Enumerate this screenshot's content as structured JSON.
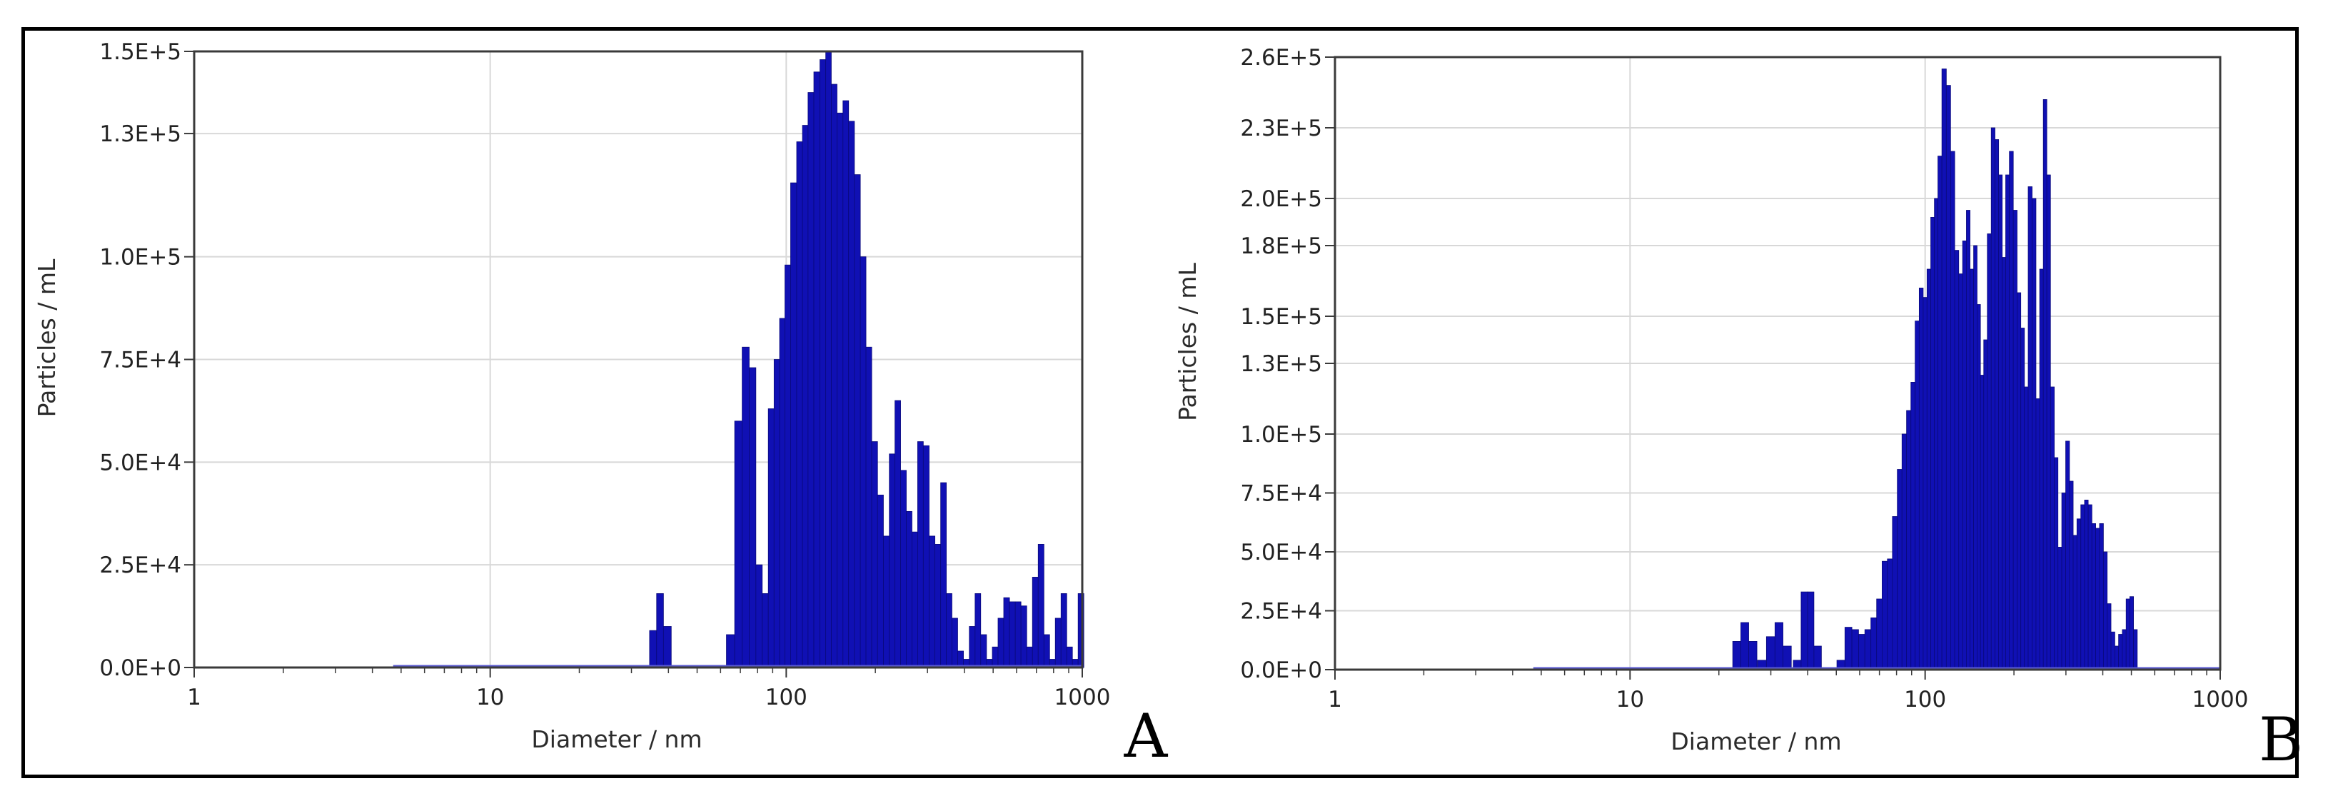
{
  "colors": {
    "bar_fill": "#1010b4",
    "bar_edge": "#0a0a7a",
    "baseline": "#5a5ad0",
    "grid": "#d8d8d8",
    "axis": "#3a3a3a",
    "frame": "#000000"
  },
  "chart_data": [
    {
      "type": "bar",
      "panel_label": "A",
      "xlabel": "Diameter / nm",
      "ylabel": "Particles / mL",
      "x_scale": "log",
      "xlim": [
        1,
        1000
      ],
      "ylim": [
        0,
        150000
      ],
      "x_tick_labels": [
        "1",
        "10",
        "100",
        "1000"
      ],
      "y_tick_labels": [
        "0.0E+0",
        "2.5E+4",
        "5.0E+4",
        "7.5E+4",
        "1.0E+5",
        "1.3E+5",
        "1.5E+5"
      ],
      "grid": true,
      "legend": false,
      "series": [
        {
          "x": [
            35.5,
            37.5,
            39.5,
            65,
            69,
            73,
            77,
            81,
            85,
            89,
            93,
            97,
            101,
            106,
            111,
            116,
            121,
            127,
            133,
            139,
            145,
            152,
            159,
            166,
            174,
            182,
            190,
            199,
            208,
            218,
            228,
            238,
            249,
            260,
            272,
            284,
            297,
            311,
            325,
            340,
            355,
            371,
            388,
            406,
            425,
            444,
            464,
            486,
            508,
            531,
            555,
            581,
            607,
            635,
            664,
            694,
            726,
            759,
            793,
            829,
            867,
            906,
            947,
            990
          ],
          "y": [
            9000,
            18000,
            10000,
            8000,
            60000,
            78000,
            73000,
            25000,
            18000,
            63000,
            75000,
            85000,
            98000,
            118000,
            128000,
            132000,
            140000,
            145000,
            148000,
            150000,
            142000,
            135000,
            138000,
            133000,
            120000,
            100000,
            78000,
            55000,
            42000,
            32000,
            52000,
            65000,
            48000,
            38000,
            33000,
            55000,
            54000,
            32000,
            30000,
            45000,
            18000,
            12000,
            4000,
            2000,
            10000,
            18000,
            8000,
            2000,
            5000,
            12000,
            17000,
            16000,
            16000,
            15000,
            5000,
            22000,
            30000,
            8000,
            2000,
            12000,
            18000,
            5000,
            2000,
            18000
          ]
        }
      ]
    },
    {
      "type": "bar",
      "panel_label": "B",
      "xlabel": "Diameter / nm",
      "ylabel": "Particles / mL",
      "x_scale": "log",
      "xlim": [
        1,
        1000
      ],
      "ylim": [
        0,
        260000
      ],
      "x_tick_labels": [
        "1",
        "10",
        "100",
        "1000"
      ],
      "y_tick_labels": [
        "0.0E+0",
        "2.5E+4",
        "5.0E+4",
        "7.5E+4",
        "1.0E+5",
        "1.3E+5",
        "1.5E+5",
        "1.8E+5",
        "2.0E+5",
        "2.3E+5",
        "2.6E+5"
      ],
      "grid": true,
      "legend": false,
      "series": [
        {
          "x": [
            23,
            24.5,
            26,
            28,
            30,
            32,
            34,
            37,
            39,
            41,
            43,
            52,
            55,
            58,
            61,
            64,
            67,
            70,
            73,
            76,
            79,
            82,
            85,
            88,
            91,
            94,
            97,
            100,
            103,
            106,
            109,
            112,
            116,
            120,
            124,
            128,
            132,
            136,
            140,
            144,
            148,
            152,
            156,
            160,
            165,
            170,
            175,
            180,
            185,
            190,
            196,
            202,
            208,
            214,
            220,
            227,
            234,
            241,
            248,
            255,
            262,
            270,
            278,
            286,
            295,
            304,
            313,
            322,
            332,
            342,
            352,
            362,
            373,
            384,
            396,
            408,
            420,
            433,
            446,
            459,
            473,
            487,
            501,
            516,
            531,
            547,
            563,
            580,
            597,
            615
          ],
          "y": [
            12000,
            20000,
            12000,
            4000,
            14000,
            20000,
            10000,
            4000,
            33000,
            33000,
            10000,
            4000,
            18000,
            17000,
            15000,
            17000,
            22000,
            30000,
            46000,
            47000,
            65000,
            85000,
            100000,
            110000,
            122000,
            148000,
            162000,
            158000,
            170000,
            192000,
            200000,
            218000,
            255000,
            248000,
            220000,
            178000,
            168000,
            182000,
            195000,
            170000,
            180000,
            155000,
            125000,
            140000,
            185000,
            230000,
            225000,
            210000,
            175000,
            210000,
            220000,
            195000,
            160000,
            145000,
            120000,
            205000,
            200000,
            115000,
            170000,
            242000,
            210000,
            120000,
            90000,
            52000,
            75000,
            97000,
            80000,
            57000,
            64000,
            70000,
            72000,
            70000,
            62000,
            60000,
            62000,
            50000,
            28000,
            16000,
            10000,
            15000,
            17000,
            30000,
            31000,
            17000,
            0,
            0,
            0,
            0,
            0,
            0
          ]
        }
      ]
    }
  ]
}
